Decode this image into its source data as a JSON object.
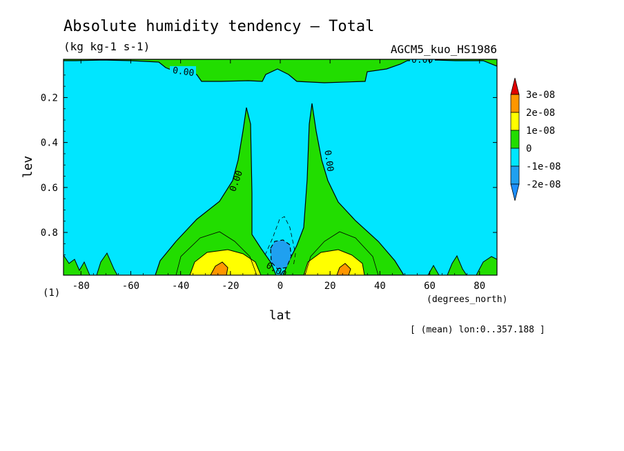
{
  "header": {
    "title": "Absolute humidity tendency — Total",
    "units": "(kg kg-1 s-1)",
    "model": "AGCM5_kuo_HS1986"
  },
  "footer": {
    "panel_index": "(1)",
    "x_units": "(degrees_north)",
    "mean_note": "[ (mean) lon:0..357.188 ]"
  },
  "colors": {
    "c_lt_m2e8": "#1e90ff",
    "c_m2e8_m1e8": "#1fa0f0",
    "c_m1e8_0": "#00e6ff",
    "c_0_1e8": "#22dd00",
    "c_1e8_2e8": "#ffff00",
    "c_2e8_3e8": "#ff9600",
    "c_gt_3e8": "#e10000"
  },
  "chart_data": {
    "type": "contour",
    "title": "Absolute humidity tendency — Total",
    "subtitle": "(kg kg-1 s-1)",
    "xlabel": "lat",
    "ylabel": "lev",
    "xlim": [
      -87,
      87
    ],
    "ylim": [
      0.99,
      0.03
    ],
    "x_ticks": [
      -80,
      -60,
      -40,
      -20,
      0,
      20,
      40,
      60,
      80
    ],
    "y_ticks": [
      0.2,
      0.4,
      0.6,
      0.8
    ],
    "contour_labels": [
      "0.00",
      "0.00",
      "0.00",
      "0.00",
      "0.00"
    ],
    "colorbar": {
      "labels": [
        "3e-08",
        "2e-08",
        "1e-08",
        "0",
        "-1e-08",
        "-2e-08"
      ],
      "levels": [
        3e-08,
        2e-08,
        1e-08,
        0,
        -1e-08,
        -2e-08
      ]
    },
    "regions": [
      {
        "range": "0..1e-08",
        "where": "top near lev 0.03-0.12; flanking columns lat -25..-10 and 10..25 up to lev 0.22; broad lower-level wedges lat -50..-5 and 5..50; isolated spots near surface at lat -85, -75, 65, 85"
      },
      {
        "range": "1e-08..2e-08",
        "where": "near-surface lat -35..-10 and 10..35, lev 0.92-0.99"
      },
      {
        "range": "2e-08..3e-08",
        "where": "small patches near lat -25 and 25 at the surface"
      },
      {
        "range": "-2e-08..-1e-08",
        "where": "small minimum near lat 0, lev 0.87-0.95"
      },
      {
        "range": "-1e-08..0",
        "where": "remainder of the domain"
      }
    ]
  }
}
